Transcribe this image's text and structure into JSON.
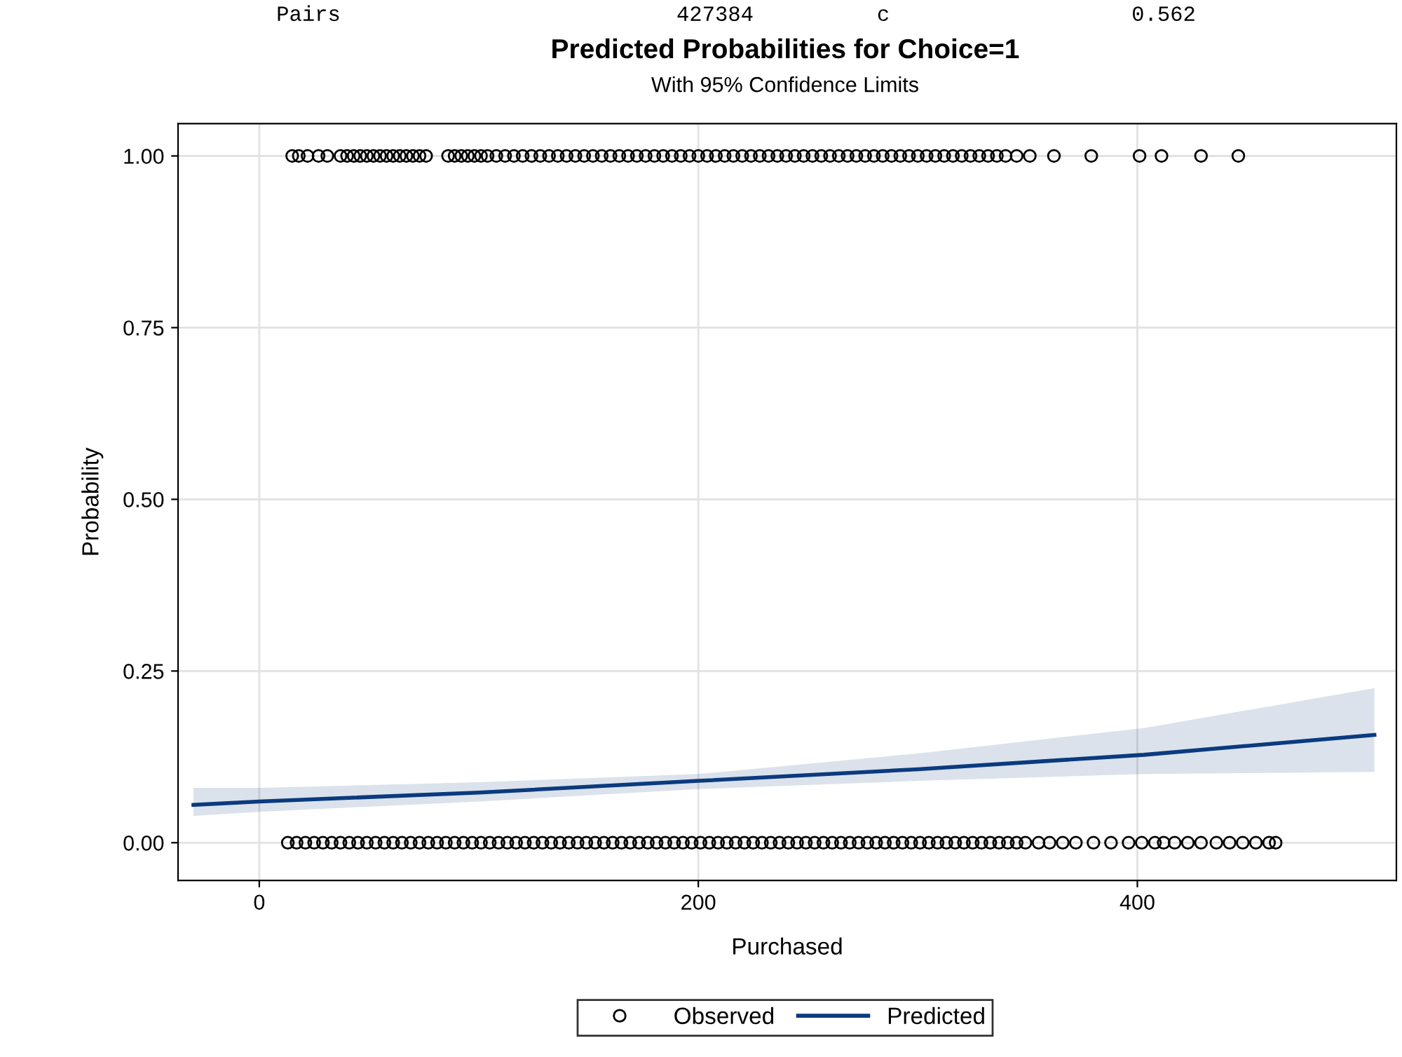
{
  "chart_data": {
    "type": "scatter",
    "title": "Predicted Probabilities for Choice=1",
    "subtitle": "With 95% Confidence Limits",
    "xlabel": "Purchased",
    "ylabel": "Probability",
    "annotations": [
      "Pairs",
      "427384",
      "c",
      "0.562"
    ],
    "xlim": [
      -37,
      518
    ],
    "xticks": [
      0,
      200,
      400
    ],
    "ylim": [
      -0.055,
      1.047
    ],
    "yticks": [
      {
        "value": 0,
        "label": "0.00"
      },
      {
        "value": 0.25,
        "label": "0.25"
      },
      {
        "value": 0.5,
        "label": "0.50"
      },
      {
        "value": 0.75,
        "label": "0.75"
      },
      {
        "value": 1,
        "label": "1.00"
      }
    ],
    "grid": true,
    "legend": "bottom",
    "series": [
      {
        "name": "Observed",
        "marker": "circle",
        "color": "#000000",
        "x": [
          15,
          18,
          22,
          27,
          31,
          37,
          40,
          43,
          46,
          49,
          52,
          55,
          58,
          61,
          64,
          67,
          70,
          73,
          76,
          86,
          89,
          92,
          95,
          98,
          101,
          104,
          108,
          112,
          116,
          120,
          124,
          128,
          132,
          136,
          140,
          144,
          148,
          152,
          156,
          160,
          164,
          168,
          172,
          176,
          180,
          184,
          188,
          192,
          196,
          200,
          204,
          208,
          212,
          216,
          220,
          224,
          228,
          232,
          236,
          240,
          244,
          248,
          252,
          256,
          260,
          264,
          268,
          272,
          276,
          280,
          284,
          288,
          292,
          296,
          300,
          304,
          308,
          312,
          316,
          320,
          324,
          328,
          332,
          336,
          340,
          345,
          351,
          362,
          379,
          401,
          411,
          429,
          446,
          13,
          17,
          21,
          25,
          29,
          33,
          37,
          41,
          45,
          49,
          53,
          57,
          61,
          65,
          69,
          73,
          77,
          81,
          85,
          89,
          93,
          97,
          101,
          105,
          109,
          113,
          117,
          121,
          125,
          129,
          133,
          137,
          141,
          145,
          149,
          153,
          157,
          161,
          165,
          169,
          173,
          177,
          181,
          185,
          189,
          193,
          197,
          201,
          205,
          209,
          213,
          217,
          221,
          225,
          229,
          233,
          237,
          241,
          245,
          249,
          253,
          257,
          261,
          265,
          269,
          273,
          277,
          281,
          285,
          289,
          293,
          297,
          301,
          305,
          309,
          313,
          317,
          321,
          325,
          329,
          333,
          337,
          341,
          345,
          349,
          355,
          360,
          366,
          372,
          380,
          388,
          396,
          402,
          408,
          412,
          417,
          423,
          429,
          436,
          442,
          448,
          454,
          460,
          463
        ],
        "values": [
          1,
          1,
          1,
          1,
          1,
          1,
          1,
          1,
          1,
          1,
          1,
          1,
          1,
          1,
          1,
          1,
          1,
          1,
          1,
          1,
          1,
          1,
          1,
          1,
          1,
          1,
          1,
          1,
          1,
          1,
          1,
          1,
          1,
          1,
          1,
          1,
          1,
          1,
          1,
          1,
          1,
          1,
          1,
          1,
          1,
          1,
          1,
          1,
          1,
          1,
          1,
          1,
          1,
          1,
          1,
          1,
          1,
          1,
          1,
          1,
          1,
          1,
          1,
          1,
          1,
          1,
          1,
          1,
          1,
          1,
          1,
          1,
          1,
          1,
          1,
          1,
          1,
          1,
          1,
          1,
          1,
          1,
          1,
          1,
          1,
          1,
          1,
          1,
          1,
          1,
          1,
          1,
          1,
          0,
          0,
          0,
          0,
          0,
          0,
          0,
          0,
          0,
          0,
          0,
          0,
          0,
          0,
          0,
          0,
          0,
          0,
          0,
          0,
          0,
          0,
          0,
          0,
          0,
          0,
          0,
          0,
          0,
          0,
          0,
          0,
          0,
          0,
          0,
          0,
          0,
          0,
          0,
          0,
          0,
          0,
          0,
          0,
          0,
          0,
          0,
          0,
          0,
          0,
          0,
          0,
          0,
          0,
          0,
          0,
          0,
          0,
          0,
          0,
          0,
          0,
          0,
          0,
          0,
          0,
          0,
          0,
          0,
          0,
          0,
          0,
          0,
          0,
          0,
          0,
          0,
          0,
          0,
          0,
          0,
          0,
          0,
          0,
          0,
          0,
          0,
          0,
          0,
          0,
          0,
          0,
          0,
          0,
          0,
          0,
          0,
          0,
          0,
          0,
          0,
          0,
          0,
          0
        ]
      },
      {
        "name": "Predicted",
        "type": "line",
        "marker": "none",
        "line_style": "solid",
        "color": "#0b3a7e",
        "x": [
          -30,
          0,
          100,
          200,
          300,
          403,
          508
        ],
        "values": [
          0.055,
          0.06,
          0.073,
          0.09,
          0.107,
          0.128,
          0.157
        ],
        "lower": [
          0.039,
          0.045,
          0.06,
          0.078,
          0.09,
          0.1,
          0.103
        ],
        "upper": [
          0.08,
          0.08,
          0.088,
          0.1,
          0.13,
          0.167,
          0.225
        ]
      }
    ]
  }
}
